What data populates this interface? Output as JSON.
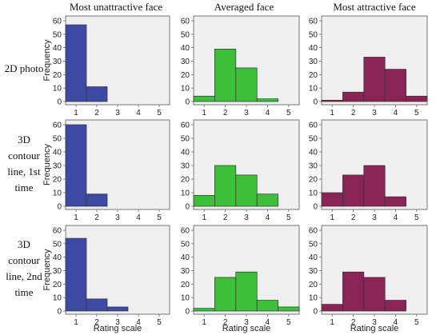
{
  "col_titles": [
    "Most unattractive face",
    "Averaged face",
    "Most attractive face"
  ],
  "row_titles": [
    [
      "2D photo"
    ],
    [
      "3D",
      "contour",
      "line, 1st",
      "time"
    ],
    [
      "3D",
      "contour",
      "line, 2nd",
      "time"
    ]
  ],
  "ylabel": "Frequency",
  "xlabel": "Rating scale",
  "colors": {
    "unattractive": "#3c4aa3",
    "averaged": "#3dbf3a",
    "attractive": "#8b2456",
    "panel_bg": "#efefef"
  },
  "chart_data": [
    {
      "type": "bar",
      "row": 0,
      "col": 0,
      "categories": [
        1,
        2,
        3,
        4,
        5
      ],
      "values": [
        57,
        11,
        0,
        0,
        0
      ],
      "ylim": [
        0,
        60
      ],
      "yticks": [
        0,
        10,
        20,
        30,
        40,
        50,
        60
      ],
      "xticks": [
        1,
        2,
        3,
        4,
        5
      ]
    },
    {
      "type": "bar",
      "row": 0,
      "col": 1,
      "categories": [
        1,
        2,
        3,
        4,
        5
      ],
      "values": [
        4,
        39,
        25,
        2,
        0
      ],
      "ylim": [
        0,
        60
      ],
      "yticks": [
        0,
        10,
        20,
        30,
        40,
        50,
        60
      ],
      "xticks": [
        1,
        2,
        3,
        4,
        5
      ]
    },
    {
      "type": "bar",
      "row": 0,
      "col": 2,
      "categories": [
        1,
        2,
        3,
        4,
        5
      ],
      "values": [
        1,
        7,
        33,
        24,
        4
      ],
      "ylim": [
        0,
        60
      ],
      "yticks": [
        0,
        10,
        20,
        30,
        40,
        50,
        60
      ],
      "xticks": [
        1,
        2,
        3,
        4,
        5
      ]
    },
    {
      "type": "bar",
      "row": 1,
      "col": 0,
      "categories": [
        1,
        2,
        3,
        4,
        5
      ],
      "values": [
        60,
        9,
        0,
        0,
        0
      ],
      "ylim": [
        0,
        60
      ],
      "yticks": [
        0,
        10,
        20,
        30,
        40,
        50,
        60
      ],
      "xticks": [
        1,
        2,
        3,
        4,
        5
      ]
    },
    {
      "type": "bar",
      "row": 1,
      "col": 1,
      "categories": [
        1,
        2,
        3,
        4,
        5
      ],
      "values": [
        8,
        30,
        23,
        9,
        0
      ],
      "ylim": [
        0,
        60
      ],
      "yticks": [
        0,
        10,
        20,
        30,
        40,
        50,
        60
      ],
      "xticks": [
        1,
        2,
        3,
        4,
        5
      ]
    },
    {
      "type": "bar",
      "row": 1,
      "col": 2,
      "categories": [
        1,
        2,
        3,
        4,
        5
      ],
      "values": [
        10,
        23,
        30,
        7,
        0
      ],
      "ylim": [
        0,
        60
      ],
      "yticks": [
        0,
        10,
        20,
        30,
        40,
        50,
        60
      ],
      "xticks": [
        1,
        2,
        3,
        4,
        5
      ]
    },
    {
      "type": "bar",
      "row": 2,
      "col": 0,
      "categories": [
        1,
        2,
        3,
        4,
        5
      ],
      "values": [
        54,
        9,
        3,
        0,
        0
      ],
      "ylim": [
        0,
        60
      ],
      "yticks": [
        0,
        10,
        20,
        30,
        40,
        50,
        60
      ],
      "xticks": [
        1,
        2,
        3,
        4,
        5
      ]
    },
    {
      "type": "bar",
      "row": 2,
      "col": 1,
      "categories": [
        1,
        2,
        3,
        4,
        5
      ],
      "values": [
        2,
        25,
        29,
        8,
        3
      ],
      "ylim": [
        0,
        60
      ],
      "yticks": [
        0,
        10,
        20,
        30,
        40,
        50,
        60
      ],
      "xticks": [
        1,
        2,
        3,
        4,
        5
      ]
    },
    {
      "type": "bar",
      "row": 2,
      "col": 2,
      "categories": [
        1,
        2,
        3,
        4,
        5
      ],
      "values": [
        5,
        29,
        25,
        8,
        0
      ],
      "ylim": [
        0,
        60
      ],
      "yticks": [
        0,
        10,
        20,
        30,
        40,
        50,
        60
      ],
      "xticks": [
        1,
        2,
        3,
        4,
        5
      ]
    }
  ]
}
